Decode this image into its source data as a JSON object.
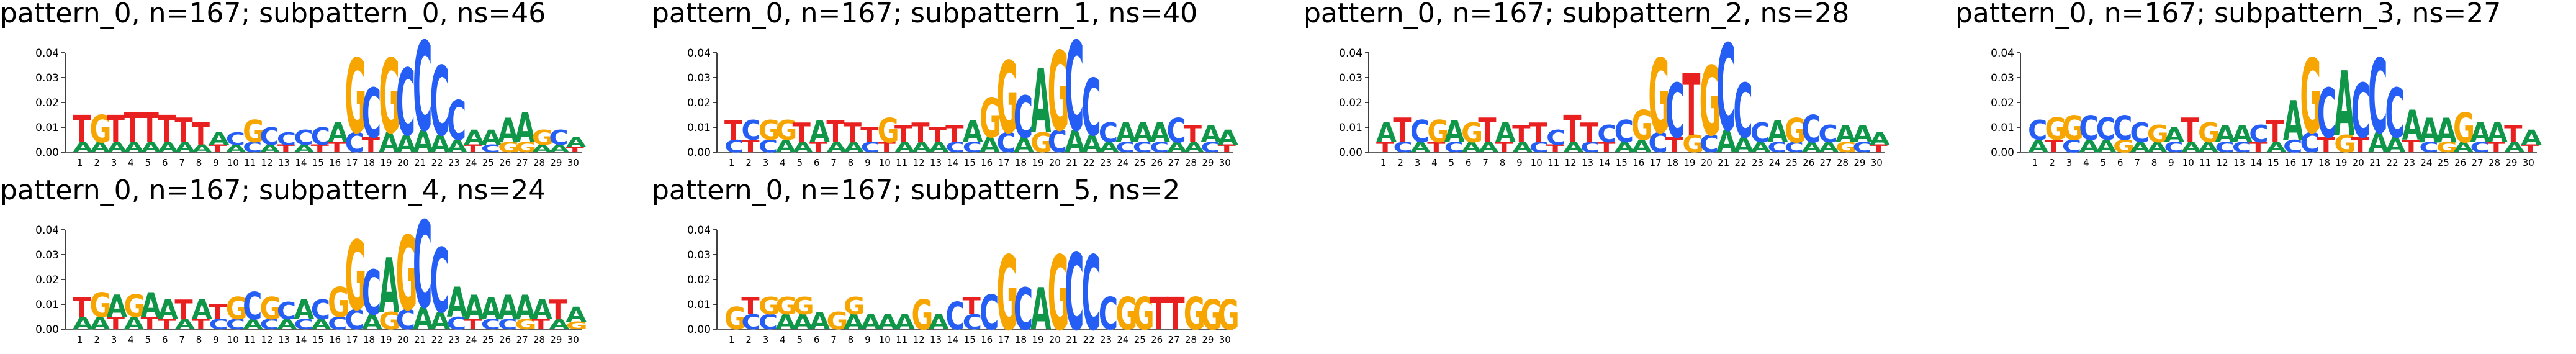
{
  "colors": {
    "A": "#109648",
    "C": "#255ef5",
    "G": "#f7a500",
    "T": "#e82020"
  },
  "chart_data": [
    {
      "type": "sequence-logo",
      "title": "pattern_0, n=167; subpattern_0, ns=46",
      "ylim": [
        0,
        0.04
      ],
      "yticks": [
        "0.00",
        "0.01",
        "0.02",
        "0.03",
        "0.04"
      ],
      "positions": [
        "1",
        "2",
        "3",
        "4",
        "5",
        "6",
        "7",
        "8",
        "9",
        "10",
        "11",
        "12",
        "13",
        "14",
        "15",
        "16",
        "17",
        "18",
        "19",
        "20",
        "21",
        "22",
        "23",
        "24",
        "25",
        "26",
        "27",
        "28",
        "29",
        "30"
      ],
      "letters": [
        "TA",
        "GA",
        "TA",
        "TA",
        "TA",
        "TA",
        "TA",
        "TA",
        "AT",
        "CA",
        "GC",
        "CA",
        "CT",
        "CA",
        "CT",
        "AT",
        "GC",
        "CT",
        "GA",
        "CA",
        "CA",
        "CA",
        "CA",
        "AT",
        "AC",
        "AG",
        "AG",
        "GA",
        "CA",
        "AT"
      ],
      "heights": [
        [
          0.011,
          0.004
        ],
        [
          0.011,
          0.004
        ],
        [
          0.011,
          0.004
        ],
        [
          0.012,
          0.004
        ],
        [
          0.012,
          0.004
        ],
        [
          0.011,
          0.004
        ],
        [
          0.01,
          0.004
        ],
        [
          0.009,
          0.003
        ],
        [
          0.005,
          0.003
        ],
        [
          0.005,
          0.003
        ],
        [
          0.009,
          0.004
        ],
        [
          0.007,
          0.003
        ],
        [
          0.005,
          0.003
        ],
        [
          0.006,
          0.003
        ],
        [
          0.007,
          0.003
        ],
        [
          0.008,
          0.004
        ],
        [
          0.03,
          0.008
        ],
        [
          0.02,
          0.006
        ],
        [
          0.03,
          0.008
        ],
        [
          0.027,
          0.007
        ],
        [
          0.036,
          0.009
        ],
        [
          0.028,
          0.007
        ],
        [
          0.016,
          0.005
        ],
        [
          0.006,
          0.003
        ],
        [
          0.006,
          0.003
        ],
        [
          0.01,
          0.004
        ],
        [
          0.012,
          0.004
        ],
        [
          0.006,
          0.003
        ],
        [
          0.006,
          0.003
        ],
        [
          0.004,
          0.002
        ]
      ]
    },
    {
      "type": "sequence-logo",
      "title": "pattern_0, n=167; subpattern_1, ns=40",
      "ylim": [
        0,
        0.04
      ],
      "yticks": [
        "0.00",
        "0.01",
        "0.02",
        "0.03",
        "0.04"
      ],
      "positions": [
        "1",
        "2",
        "3",
        "4",
        "5",
        "6",
        "7",
        "8",
        "9",
        "10",
        "11",
        "12",
        "13",
        "14",
        "15",
        "16",
        "17",
        "18",
        "19",
        "20",
        "21",
        "22",
        "23",
        "24",
        "25",
        "26",
        "27",
        "28",
        "29",
        "30"
      ],
      "letters": [
        "TC",
        "CT",
        "GC",
        "GA",
        "TA",
        "AT",
        "TA",
        "TA",
        "TC",
        "GT",
        "TA",
        "TA",
        "TA",
        "TC",
        "AC",
        "GA",
        "GC",
        "CA",
        "AG",
        "GC",
        "CA",
        "CA",
        "CA",
        "AC",
        "AC",
        "AC",
        "CA",
        "TA",
        "AC",
        "AT"
      ],
      "heights": [
        [
          0.008,
          0.005
        ],
        [
          0.008,
          0.005
        ],
        [
          0.008,
          0.005
        ],
        [
          0.008,
          0.005
        ],
        [
          0.008,
          0.004
        ],
        [
          0.009,
          0.004
        ],
        [
          0.009,
          0.004
        ],
        [
          0.008,
          0.004
        ],
        [
          0.006,
          0.004
        ],
        [
          0.01,
          0.004
        ],
        [
          0.007,
          0.004
        ],
        [
          0.008,
          0.004
        ],
        [
          0.006,
          0.004
        ],
        [
          0.007,
          0.004
        ],
        [
          0.009,
          0.004
        ],
        [
          0.016,
          0.006
        ],
        [
          0.029,
          0.008
        ],
        [
          0.017,
          0.006
        ],
        [
          0.026,
          0.008
        ],
        [
          0.032,
          0.009
        ],
        [
          0.036,
          0.009
        ],
        [
          0.023,
          0.007
        ],
        [
          0.008,
          0.004
        ],
        [
          0.008,
          0.004
        ],
        [
          0.008,
          0.004
        ],
        [
          0.008,
          0.004
        ],
        [
          0.01,
          0.004
        ],
        [
          0.007,
          0.004
        ],
        [
          0.007,
          0.004
        ],
        [
          0.006,
          0.003
        ]
      ]
    },
    {
      "type": "sequence-logo",
      "title": "pattern_0, n=167; subpattern_2, ns=28",
      "ylim": [
        0,
        0.04
      ],
      "yticks": [
        "0.00",
        "0.01",
        "0.02",
        "0.03",
        "0.04"
      ],
      "positions": [
        "1",
        "2",
        "3",
        "4",
        "5",
        "6",
        "7",
        "8",
        "9",
        "10",
        "11",
        "12",
        "13",
        "14",
        "15",
        "16",
        "17",
        "18",
        "19",
        "20",
        "21",
        "22",
        "23",
        "24",
        "25",
        "26",
        "27",
        "28",
        "29",
        "30"
      ],
      "letters": [
        "AT",
        "TC",
        "CA",
        "GT",
        "AC",
        "GA",
        "TA",
        "AT",
        "TA",
        "TC",
        "CT",
        "TA",
        "TC",
        "CT",
        "CA",
        "GA",
        "GC",
        "CT",
        "TG",
        "GC",
        "CA",
        "CA",
        "CA",
        "AC",
        "GC",
        "CA",
        "CA",
        "AG",
        "AC",
        "AT"
      ],
      "heights": [
        [
          0.008,
          0.004
        ],
        [
          0.01,
          0.004
        ],
        [
          0.009,
          0.004
        ],
        [
          0.009,
          0.004
        ],
        [
          0.009,
          0.004
        ],
        [
          0.008,
          0.004
        ],
        [
          0.01,
          0.004
        ],
        [
          0.008,
          0.004
        ],
        [
          0.007,
          0.004
        ],
        [
          0.008,
          0.004
        ],
        [
          0.006,
          0.003
        ],
        [
          0.011,
          0.004
        ],
        [
          0.008,
          0.004
        ],
        [
          0.007,
          0.004
        ],
        [
          0.009,
          0.004
        ],
        [
          0.012,
          0.005
        ],
        [
          0.03,
          0.008
        ],
        [
          0.022,
          0.006
        ],
        [
          0.025,
          0.007
        ],
        [
          0.028,
          0.007
        ],
        [
          0.035,
          0.009
        ],
        [
          0.022,
          0.006
        ],
        [
          0.008,
          0.004
        ],
        [
          0.009,
          0.004
        ],
        [
          0.01,
          0.004
        ],
        [
          0.011,
          0.004
        ],
        [
          0.007,
          0.004
        ],
        [
          0.007,
          0.004
        ],
        [
          0.007,
          0.004
        ],
        [
          0.005,
          0.003
        ]
      ]
    },
    {
      "type": "sequence-logo",
      "title": "pattern_0, n=167; subpattern_3, ns=27",
      "ylim": [
        0,
        0.04
      ],
      "yticks": [
        "0.00",
        "0.01",
        "0.02",
        "0.03",
        "0.04"
      ],
      "positions": [
        "1",
        "2",
        "3",
        "4",
        "5",
        "6",
        "7",
        "8",
        "9",
        "10",
        "11",
        "12",
        "13",
        "14",
        "15",
        "16",
        "17",
        "18",
        "19",
        "20",
        "21",
        "22",
        "23",
        "24",
        "25",
        "26",
        "27",
        "28",
        "29",
        "30"
      ],
      "letters": [
        "CA",
        "GT",
        "GC",
        "CA",
        "CA",
        "CG",
        "CA",
        "GA",
        "AC",
        "TA",
        "GA",
        "AC",
        "AC",
        "CT",
        "TA",
        "AC",
        "GC",
        "CT",
        "AG",
        "CT",
        "CA",
        "CA",
        "AT",
        "AC",
        "AG",
        "GA",
        "AC",
        "AT",
        "TA",
        "AT"
      ],
      "heights": [
        [
          0.008,
          0.005
        ],
        [
          0.009,
          0.005
        ],
        [
          0.01,
          0.005
        ],
        [
          0.01,
          0.005
        ],
        [
          0.009,
          0.005
        ],
        [
          0.01,
          0.005
        ],
        [
          0.008,
          0.004
        ],
        [
          0.007,
          0.004
        ],
        [
          0.006,
          0.004
        ],
        [
          0.01,
          0.004
        ],
        [
          0.008,
          0.004
        ],
        [
          0.007,
          0.004
        ],
        [
          0.007,
          0.004
        ],
        [
          0.007,
          0.004
        ],
        [
          0.009,
          0.004
        ],
        [
          0.016,
          0.005
        ],
        [
          0.03,
          0.008
        ],
        [
          0.02,
          0.006
        ],
        [
          0.026,
          0.007
        ],
        [
          0.022,
          0.006
        ],
        [
          0.03,
          0.008
        ],
        [
          0.02,
          0.006
        ],
        [
          0.012,
          0.005
        ],
        [
          0.01,
          0.004
        ],
        [
          0.01,
          0.004
        ],
        [
          0.012,
          0.004
        ],
        [
          0.008,
          0.004
        ],
        [
          0.008,
          0.004
        ],
        [
          0.007,
          0.004
        ],
        [
          0.006,
          0.003
        ]
      ]
    },
    {
      "type": "sequence-logo",
      "title": "pattern_0, n=167; subpattern_4, ns=24",
      "ylim": [
        0,
        0.04
      ],
      "yticks": [
        "0.00",
        "0.01",
        "0.02",
        "0.03",
        "0.04"
      ],
      "positions": [
        "1",
        "2",
        "3",
        "4",
        "5",
        "6",
        "7",
        "8",
        "9",
        "10",
        "11",
        "12",
        "13",
        "14",
        "15",
        "16",
        "17",
        "18",
        "19",
        "20",
        "21",
        "22",
        "23",
        "24",
        "25",
        "26",
        "27",
        "28",
        "29",
        "30"
      ],
      "letters": [
        "TA",
        "GA",
        "AT",
        "GA",
        "AT",
        "AT",
        "TA",
        "AT",
        "TC",
        "GC",
        "CA",
        "GC",
        "CA",
        "AC",
        "CA",
        "GC",
        "GC",
        "CA",
        "AG",
        "GC",
        "CA",
        "CA",
        "AC",
        "AT",
        "AC",
        "AC",
        "AG",
        "AT",
        "TA",
        "AG"
      ],
      "heights": [
        [
          0.008,
          0.005
        ],
        [
          0.01,
          0.005
        ],
        [
          0.009,
          0.005
        ],
        [
          0.009,
          0.005
        ],
        [
          0.01,
          0.005
        ],
        [
          0.008,
          0.004
        ],
        [
          0.008,
          0.004
        ],
        [
          0.008,
          0.004
        ],
        [
          0.006,
          0.004
        ],
        [
          0.009,
          0.004
        ],
        [
          0.011,
          0.004
        ],
        [
          0.009,
          0.004
        ],
        [
          0.007,
          0.004
        ],
        [
          0.008,
          0.004
        ],
        [
          0.008,
          0.004
        ],
        [
          0.012,
          0.005
        ],
        [
          0.028,
          0.008
        ],
        [
          0.018,
          0.006
        ],
        [
          0.022,
          0.007
        ],
        [
          0.03,
          0.008
        ],
        [
          0.035,
          0.009
        ],
        [
          0.026,
          0.007
        ],
        [
          0.012,
          0.005
        ],
        [
          0.01,
          0.004
        ],
        [
          0.009,
          0.004
        ],
        [
          0.01,
          0.004
        ],
        [
          0.01,
          0.004
        ],
        [
          0.008,
          0.004
        ],
        [
          0.008,
          0.004
        ],
        [
          0.006,
          0.003
        ]
      ]
    },
    {
      "type": "sequence-logo",
      "title": "pattern_0, n=167; subpattern_5, ns=2",
      "ylim": [
        0,
        0.04
      ],
      "yticks": [
        "0.00",
        "0.01",
        "0.02",
        "0.03",
        "0.04"
      ],
      "positions": [
        "1",
        "2",
        "3",
        "4",
        "5",
        "6",
        "7",
        "8",
        "9",
        "10",
        "11",
        "12",
        "13",
        "14",
        "15",
        "16",
        "17",
        "18",
        "19",
        "20",
        "21",
        "22",
        "23",
        "24",
        "25",
        "26",
        "27",
        "28",
        "29",
        "30"
      ],
      "letters": [
        "G",
        "TC",
        "GC",
        "GA",
        "GA",
        "A",
        "G",
        "GA",
        "A",
        "A",
        "A",
        "G",
        "A",
        "C",
        "TC",
        "C",
        "G",
        "C",
        "A",
        "G",
        "C",
        "C",
        "C",
        "G",
        "G",
        "T",
        "T",
        "G",
        "G",
        "G"
      ],
      "heights": [
        [
          0.009
        ],
        [
          0.007,
          0.006
        ],
        [
          0.007,
          0.006
        ],
        [
          0.007,
          0.006
        ],
        [
          0.007,
          0.006
        ],
        [
          0.007
        ],
        [
          0.007
        ],
        [
          0.007,
          0.006
        ],
        [
          0.006
        ],
        [
          0.006
        ],
        [
          0.006
        ],
        [
          0.012
        ],
        [
          0.006
        ],
        [
          0.011
        ],
        [
          0.007,
          0.006
        ],
        [
          0.014
        ],
        [
          0.03
        ],
        [
          0.017
        ],
        [
          0.017
        ],
        [
          0.03
        ],
        [
          0.031
        ],
        [
          0.03
        ],
        [
          0.013
        ],
        [
          0.013
        ],
        [
          0.013
        ],
        [
          0.013
        ],
        [
          0.013
        ],
        [
          0.013
        ],
        [
          0.012
        ],
        [
          0.012
        ]
      ]
    }
  ]
}
